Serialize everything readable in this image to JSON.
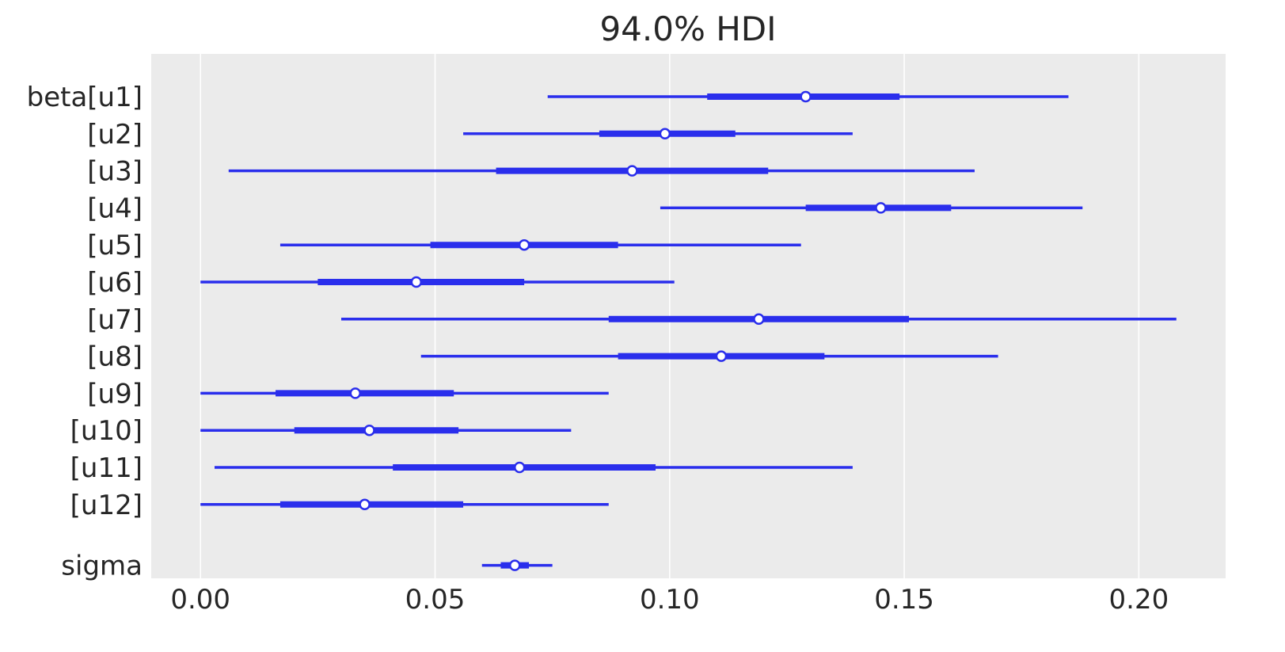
{
  "chart_data": {
    "type": "forest",
    "title": "94.0% HDI",
    "xlim": [
      -0.0105,
      0.2185
    ],
    "xticks": [
      "0.00",
      "0.05",
      "0.10",
      "0.15",
      "0.20"
    ],
    "grid": true,
    "colors": {
      "series": "#2a2eec",
      "background": "#ebebeb",
      "grid": "#ffffff",
      "marker_fill": "#ffffff",
      "text": "#262626"
    },
    "rows": [
      {
        "label": "beta[u1]",
        "hdi_low": 0.074,
        "q_low": 0.108,
        "median": 0.129,
        "q_high": 0.149,
        "hdi_high": 0.185,
        "group_gap_before": false
      },
      {
        "label": "[u2]",
        "hdi_low": 0.056,
        "q_low": 0.085,
        "median": 0.099,
        "q_high": 0.114,
        "hdi_high": 0.139,
        "group_gap_before": false
      },
      {
        "label": "[u3]",
        "hdi_low": 0.006,
        "q_low": 0.063,
        "median": 0.092,
        "q_high": 0.121,
        "hdi_high": 0.165,
        "group_gap_before": false
      },
      {
        "label": "[u4]",
        "hdi_low": 0.098,
        "q_low": 0.129,
        "median": 0.145,
        "q_high": 0.16,
        "hdi_high": 0.188,
        "group_gap_before": false
      },
      {
        "label": "[u5]",
        "hdi_low": 0.017,
        "q_low": 0.049,
        "median": 0.069,
        "q_high": 0.089,
        "hdi_high": 0.128,
        "group_gap_before": false
      },
      {
        "label": "[u6]",
        "hdi_low": 0.0,
        "q_low": 0.025,
        "median": 0.046,
        "q_high": 0.069,
        "hdi_high": 0.101,
        "group_gap_before": false
      },
      {
        "label": "[u7]",
        "hdi_low": 0.03,
        "q_low": 0.087,
        "median": 0.119,
        "q_high": 0.151,
        "hdi_high": 0.208,
        "group_gap_before": false
      },
      {
        "label": "[u8]",
        "hdi_low": 0.047,
        "q_low": 0.089,
        "median": 0.111,
        "q_high": 0.133,
        "hdi_high": 0.17,
        "group_gap_before": false
      },
      {
        "label": "[u9]",
        "hdi_low": 0.0,
        "q_low": 0.016,
        "median": 0.033,
        "q_high": 0.054,
        "hdi_high": 0.087,
        "group_gap_before": false
      },
      {
        "label": "[u10]",
        "hdi_low": 0.0,
        "q_low": 0.02,
        "median": 0.036,
        "q_high": 0.055,
        "hdi_high": 0.079,
        "group_gap_before": false
      },
      {
        "label": "[u11]",
        "hdi_low": 0.003,
        "q_low": 0.041,
        "median": 0.068,
        "q_high": 0.097,
        "hdi_high": 0.139,
        "group_gap_before": false
      },
      {
        "label": "[u12]",
        "hdi_low": 0.0,
        "q_low": 0.017,
        "median": 0.035,
        "q_high": 0.056,
        "hdi_high": 0.087,
        "group_gap_before": false
      },
      {
        "label": "sigma",
        "hdi_low": 0.06,
        "q_low": 0.064,
        "median": 0.067,
        "q_high": 0.07,
        "hdi_high": 0.075,
        "group_gap_before": true
      }
    ]
  }
}
